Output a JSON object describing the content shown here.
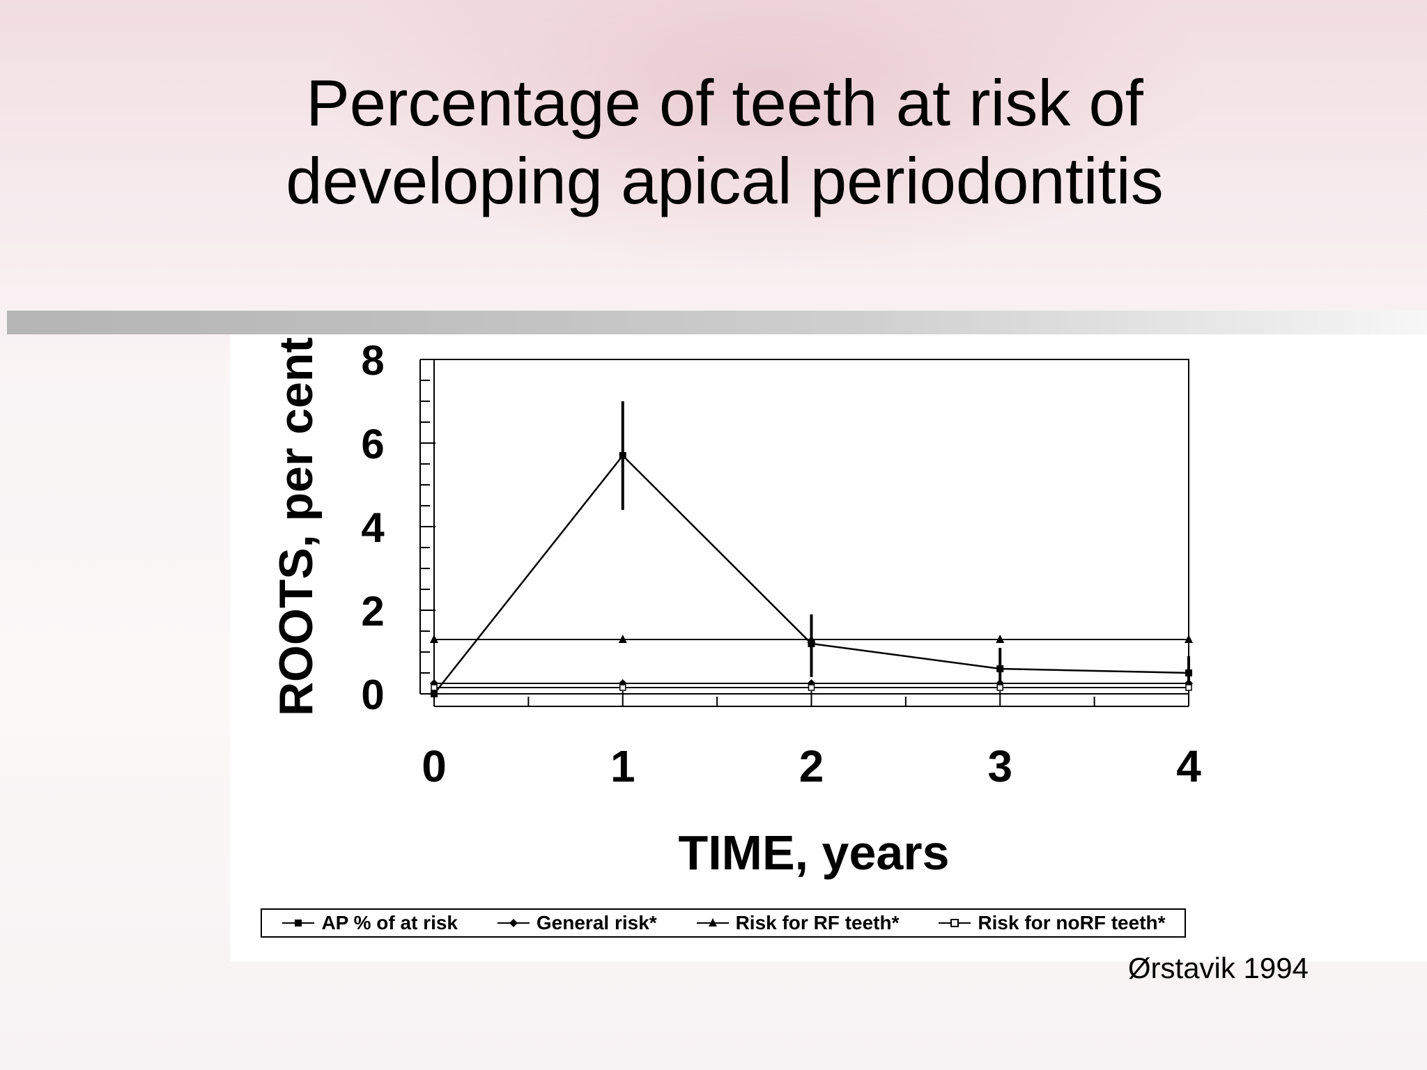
{
  "slide": {
    "title_line1": "Percentage of teeth at risk of",
    "title_line2": "developing apical periodontitis",
    "credit": "Ørstavik 1994"
  },
  "chart_data": {
    "type": "line",
    "title": "Percentage of teeth at risk of developing apical periodontitis",
    "xlabel": "TIME, years",
    "ylabel": "ROOTS, per cent",
    "xlim": [
      0,
      4
    ],
    "ylim": [
      0,
      8
    ],
    "x": [
      0,
      1,
      2,
      3,
      4
    ],
    "x_ticks": [
      "0",
      "1",
      "2",
      "3",
      "4"
    ],
    "y_ticks": [
      "0",
      "2",
      "4",
      "6",
      "8"
    ],
    "grid": false,
    "legend_position": "bottom",
    "series": [
      {
        "name": "AP % of at risk",
        "marker": "filled-square",
        "values": [
          0,
          5.7,
          1.2,
          0.6,
          0.5
        ],
        "error_low": [
          0,
          4.4,
          0.4,
          0.2,
          0.1
        ],
        "error_high": [
          0,
          7.0,
          1.9,
          1.1,
          0.9
        ]
      },
      {
        "name": "General risk*",
        "marker": "filled-diamond",
        "values": [
          0.25,
          0.25,
          0.25,
          0.25,
          0.25
        ]
      },
      {
        "name": "Risk for RF teeth*",
        "marker": "filled-triangle",
        "values": [
          1.3,
          1.3,
          1.3,
          1.3,
          1.3
        ]
      },
      {
        "name": "Risk for noRF teeth*",
        "marker": "open-square",
        "values": [
          0.15,
          0.15,
          0.15,
          0.15,
          0.15
        ]
      }
    ]
  }
}
